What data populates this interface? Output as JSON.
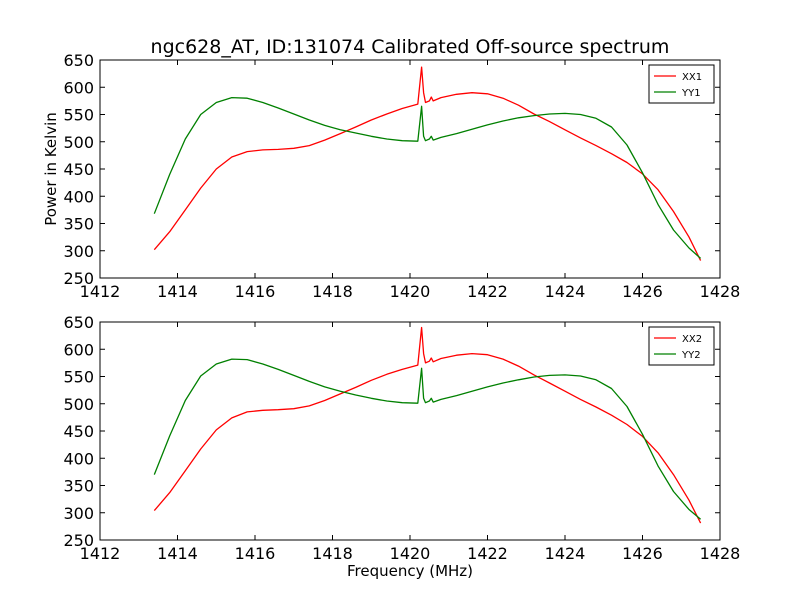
{
  "chart_data": [
    {
      "type": "line",
      "title": "ngc628_AT, ID:131074 Calibrated Off-source spectrum",
      "xlabel": "",
      "ylabel": "Power in Kelvin",
      "xlim": [
        1412,
        1428
      ],
      "ylim": [
        250,
        650
      ],
      "xticks": [
        1412,
        1414,
        1416,
        1418,
        1420,
        1422,
        1424,
        1426,
        1428
      ],
      "yticks": [
        250,
        300,
        350,
        400,
        450,
        500,
        550,
        600,
        650
      ],
      "legend_position": "top-right",
      "series": [
        {
          "name": "XX1",
          "color": "#ff0000",
          "x": [
            1413.4,
            1413.8,
            1414.2,
            1414.6,
            1415.0,
            1415.4,
            1415.8,
            1416.2,
            1416.6,
            1417.0,
            1417.4,
            1417.8,
            1418.2,
            1418.6,
            1419.0,
            1419.4,
            1419.8,
            1420.2,
            1420.3,
            1420.35,
            1420.4,
            1420.5,
            1420.55,
            1420.6,
            1420.8,
            1421.2,
            1421.6,
            1422.0,
            1422.4,
            1422.8,
            1423.2,
            1423.6,
            1424.0,
            1424.4,
            1424.8,
            1425.2,
            1425.6,
            1426.0,
            1426.4,
            1426.8,
            1427.2,
            1427.5
          ],
          "y": [
            302,
            335,
            375,
            415,
            450,
            472,
            482,
            485,
            486,
            488,
            493,
            503,
            515,
            527,
            540,
            551,
            561,
            569,
            637,
            590,
            572,
            575,
            582,
            575,
            581,
            587,
            590,
            588,
            580,
            567,
            551,
            537,
            522,
            507,
            493,
            478,
            462,
            441,
            412,
            372,
            325,
            282
          ]
        },
        {
          "name": "YY1",
          "color": "#008000",
          "x": [
            1413.4,
            1413.8,
            1414.2,
            1414.6,
            1415.0,
            1415.4,
            1415.8,
            1416.2,
            1416.6,
            1417.0,
            1417.4,
            1417.8,
            1418.2,
            1418.6,
            1419.0,
            1419.4,
            1419.8,
            1420.2,
            1420.3,
            1420.35,
            1420.4,
            1420.5,
            1420.55,
            1420.6,
            1420.8,
            1421.2,
            1421.6,
            1422.0,
            1422.4,
            1422.8,
            1423.2,
            1423.6,
            1424.0,
            1424.4,
            1424.8,
            1425.2,
            1425.6,
            1426.0,
            1426.4,
            1426.8,
            1427.2,
            1427.5
          ],
          "y": [
            368,
            440,
            505,
            550,
            572,
            581,
            580,
            572,
            562,
            551,
            540,
            530,
            522,
            516,
            510,
            505,
            502,
            501,
            565,
            510,
            502,
            505,
            510,
            503,
            508,
            515,
            523,
            531,
            538,
            544,
            548,
            551,
            552,
            550,
            543,
            527,
            494,
            443,
            385,
            338,
            305,
            286
          ]
        }
      ]
    },
    {
      "type": "line",
      "title": "",
      "xlabel": "Frequency (MHz)",
      "ylabel": "",
      "xlim": [
        1412,
        1428
      ],
      "ylim": [
        250,
        650
      ],
      "xticks": [
        1412,
        1414,
        1416,
        1418,
        1420,
        1422,
        1424,
        1426,
        1428
      ],
      "yticks": [
        250,
        300,
        350,
        400,
        450,
        500,
        550,
        600,
        650
      ],
      "legend_position": "top-right",
      "series": [
        {
          "name": "XX2",
          "color": "#ff0000",
          "x": [
            1413.4,
            1413.8,
            1414.2,
            1414.6,
            1415.0,
            1415.4,
            1415.8,
            1416.2,
            1416.6,
            1417.0,
            1417.4,
            1417.8,
            1418.2,
            1418.6,
            1419.0,
            1419.4,
            1419.8,
            1420.2,
            1420.3,
            1420.35,
            1420.4,
            1420.5,
            1420.55,
            1420.6,
            1420.8,
            1421.2,
            1421.6,
            1422.0,
            1422.4,
            1422.8,
            1423.2,
            1423.6,
            1424.0,
            1424.4,
            1424.8,
            1425.2,
            1425.6,
            1426.0,
            1426.4,
            1426.8,
            1427.2,
            1427.5
          ],
          "y": [
            304,
            337,
            377,
            417,
            452,
            474,
            485,
            488,
            489,
            491,
            496,
            506,
            518,
            530,
            543,
            554,
            563,
            571,
            640,
            592,
            575,
            578,
            584,
            577,
            583,
            589,
            592,
            590,
            582,
            569,
            553,
            538,
            523,
            508,
            494,
            479,
            462,
            440,
            410,
            370,
            323,
            281
          ]
        },
        {
          "name": "YY2",
          "color": "#008000",
          "x": [
            1413.4,
            1413.8,
            1414.2,
            1414.6,
            1415.0,
            1415.4,
            1415.8,
            1416.2,
            1416.6,
            1417.0,
            1417.4,
            1417.8,
            1418.2,
            1418.6,
            1419.0,
            1419.4,
            1419.8,
            1420.2,
            1420.3,
            1420.35,
            1420.4,
            1420.5,
            1420.55,
            1420.6,
            1420.8,
            1421.2,
            1421.6,
            1422.0,
            1422.4,
            1422.8,
            1423.2,
            1423.6,
            1424.0,
            1424.4,
            1424.8,
            1425.2,
            1425.6,
            1426.0,
            1426.4,
            1426.8,
            1427.2,
            1427.5
          ],
          "y": [
            370,
            441,
            506,
            551,
            573,
            582,
            581,
            573,
            563,
            552,
            541,
            531,
            523,
            516,
            510,
            505,
            502,
            501,
            565,
            510,
            502,
            505,
            510,
            503,
            508,
            515,
            523,
            531,
            538,
            544,
            549,
            552,
            553,
            551,
            544,
            528,
            495,
            444,
            386,
            339,
            306,
            288
          ]
        }
      ]
    }
  ]
}
